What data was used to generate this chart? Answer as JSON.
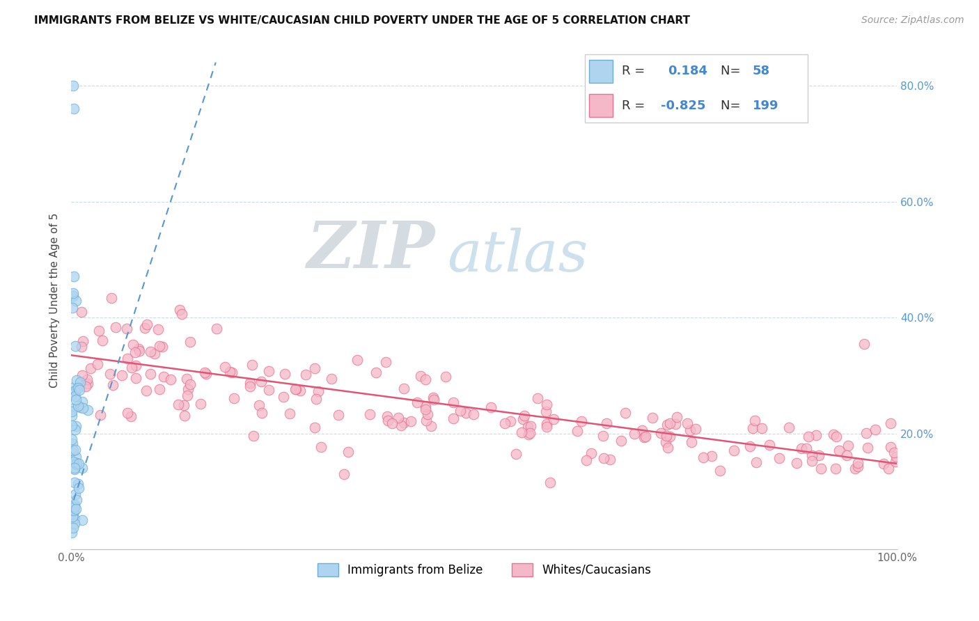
{
  "title": "IMMIGRANTS FROM BELIZE VS WHITE/CAUCASIAN CHILD POVERTY UNDER THE AGE OF 5 CORRELATION CHART",
  "source": "Source: ZipAtlas.com",
  "ylabel": "Child Poverty Under the Age of 5",
  "xlim": [
    0.0,
    1.0
  ],
  "ylim": [
    0.0,
    0.86
  ],
  "yticks": [
    0.0,
    0.2,
    0.4,
    0.6,
    0.8
  ],
  "yticklabels_right": [
    "",
    "20.0%",
    "40.0%",
    "60.0%",
    "80.0%"
  ],
  "xticks": [
    0.0,
    0.1,
    0.2,
    0.3,
    0.4,
    0.5,
    0.6,
    0.7,
    0.8,
    0.9,
    1.0
  ],
  "xticklabels": [
    "0.0%",
    "",
    "",
    "",
    "",
    "",
    "",
    "",
    "",
    "",
    "100.0%"
  ],
  "blue_R": 0.184,
  "blue_N": 58,
  "pink_R": -0.825,
  "pink_N": 199,
  "blue_fill": "#aed4f0",
  "pink_fill": "#f5b8c8",
  "blue_edge": "#6aaed6",
  "pink_edge": "#e87090",
  "blue_line_color": "#5599cc",
  "pink_line_color": "#e05575",
  "watermark_zip": "ZIP",
  "watermark_atlas": "atlas",
  "legend_blue_label": "Immigrants from Belize",
  "legend_pink_label": "Whites/Caucasians",
  "pink_line_x0": 0.0,
  "pink_line_y0": 0.335,
  "pink_line_x1": 1.0,
  "pink_line_y1": 0.148,
  "blue_line_x0": 0.003,
  "blue_line_y0": 0.085,
  "blue_line_x1": 0.175,
  "blue_line_y1": 0.84
}
